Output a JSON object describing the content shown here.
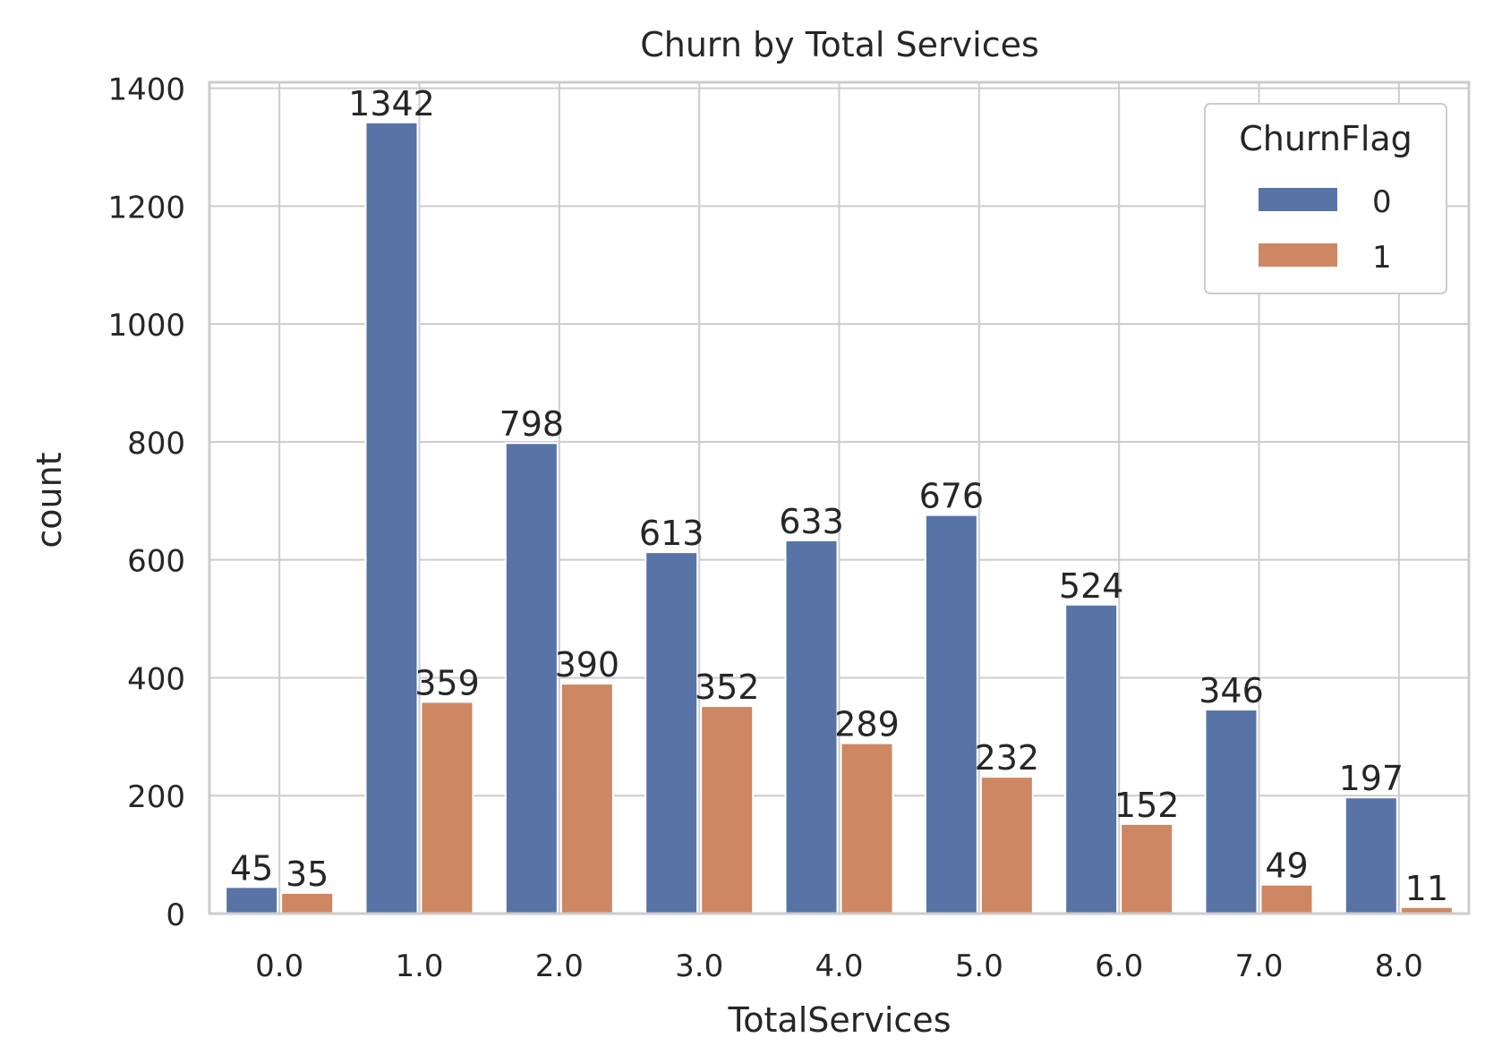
{
  "chart_data": {
    "type": "bar",
    "title": "Churn by Total Services",
    "xlabel": "TotalServices",
    "ylabel": "count",
    "categories": [
      "0.0",
      "1.0",
      "2.0",
      "3.0",
      "4.0",
      "5.0",
      "6.0",
      "7.0",
      "8.0"
    ],
    "series": [
      {
        "name": "0",
        "color": "#5874a6",
        "values": [
          45,
          1342,
          798,
          613,
          633,
          676,
          524,
          346,
          197
        ],
        "labels": [
          "45",
          "1342",
          "798",
          "613",
          "633",
          "676",
          "524",
          "346",
          "197"
        ]
      },
      {
        "name": "1",
        "color": "#cd8762",
        "values": [
          35,
          359,
          390,
          352,
          289,
          232,
          152,
          49,
          11
        ],
        "labels": [
          "35",
          "359",
          "390",
          "352",
          "289",
          "232",
          "152",
          "49",
          "11"
        ]
      }
    ],
    "yticks": [
      0,
      200,
      400,
      600,
      800,
      1000,
      1200,
      1400
    ],
    "ytick_labels": [
      "0",
      "200",
      "400",
      "600",
      "800",
      "1000",
      "1200",
      "1400"
    ],
    "ylim": [
      0,
      1410
    ],
    "grid": true,
    "legend": {
      "title": "ChurnFlag",
      "placement": "top-right"
    },
    "colors": {
      "grid": "#cccccc",
      "spine": "#cccccc",
      "text": "#262626"
    }
  }
}
